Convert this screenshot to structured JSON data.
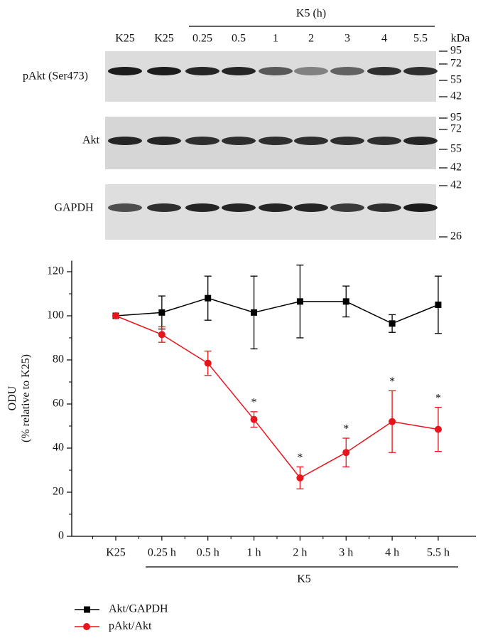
{
  "blot": {
    "group_label": "K5 (h)",
    "lanes": [
      "K25",
      "K25",
      "0.25",
      "0.5",
      "1",
      "2",
      "3",
      "4",
      "5.5"
    ],
    "unit": "kDa",
    "rows": [
      {
        "label": "pAkt (Ser473)",
        "markers": [
          "95",
          "72",
          "55",
          "42"
        ]
      },
      {
        "label": "Akt",
        "markers": [
          "95",
          "72",
          "55",
          "42"
        ]
      },
      {
        "label": "GAPDH",
        "markers": [
          "42",
          "26"
        ]
      }
    ]
  },
  "chart_data": {
    "type": "line",
    "ylabel_lines": [
      "ODU",
      "(% relative to K25)"
    ],
    "categories": [
      "K25",
      "0.25 h",
      "0.5 h",
      "1 h",
      "2 h",
      "3 h",
      "4 h",
      "5.5 h"
    ],
    "x_group_label": "K5",
    "ylim": [
      0,
      125
    ],
    "yticks": [
      0,
      20,
      40,
      60,
      80,
      100,
      120
    ],
    "yminorticks": [
      10,
      30,
      50,
      70,
      90,
      110
    ],
    "legend": "bottom-left",
    "series": [
      {
        "name": "Akt/GAPDH",
        "color": "#000000",
        "marker": "square",
        "values": [
          100,
          101.5,
          108,
          101.5,
          106.5,
          106.5,
          96.5,
          105
        ],
        "errors": [
          0,
          7.5,
          10,
          16.5,
          16.5,
          7,
          4,
          13
        ]
      },
      {
        "name": "pAkt/Akt",
        "color": "#e8141c",
        "marker": "circle",
        "values": [
          100,
          91.5,
          78.5,
          53,
          26.5,
          38,
          52,
          48.5
        ],
        "errors": [
          0,
          3.5,
          5.5,
          3.5,
          5,
          6.5,
          14,
          10
        ],
        "value_labels": [
          null,
          null,
          null,
          "*",
          "*",
          "*",
          "*",
          "*"
        ]
      }
    ]
  }
}
